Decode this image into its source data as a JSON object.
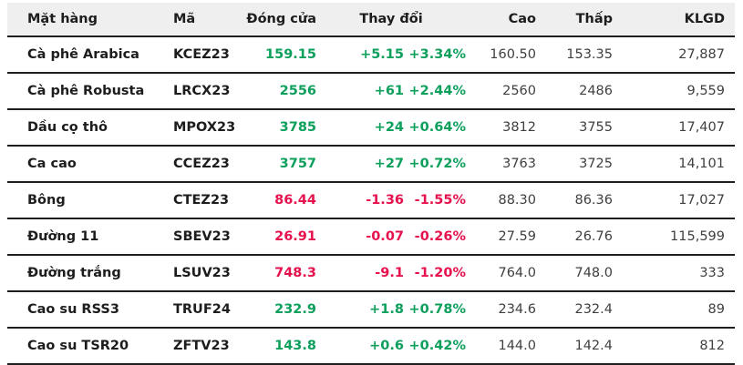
{
  "colors": {
    "up_green": "#0d9f5c",
    "down_red": "#e6124d",
    "header_bg": "#efefef",
    "divider": "#1f1f1f"
  },
  "table": {
    "headers": {
      "name": "Mặt hàng",
      "code": "Mã",
      "close": "Đóng cửa",
      "change": "Thay đổi",
      "high": "Cao",
      "low": "Thấp",
      "volume": "KLGD"
    },
    "rows": [
      {
        "name": "Cà phê Arabica",
        "code": "KCEZ23",
        "close": "159.15",
        "change": "+5.15",
        "change_pct": "+3.34%",
        "high": "160.50",
        "low": "153.35",
        "volume": "27,887",
        "direction": "up"
      },
      {
        "name": "Cà phê Robusta",
        "code": "LRCX23",
        "close": "2556",
        "change": "+61",
        "change_pct": "+2.44%",
        "high": "2560",
        "low": "2486",
        "volume": "9,559",
        "direction": "up"
      },
      {
        "name": "Dầu cọ thô",
        "code": "MPOX23",
        "close": "3785",
        "change": "+24",
        "change_pct": "+0.64%",
        "high": "3812",
        "low": "3755",
        "volume": "17,407",
        "direction": "up"
      },
      {
        "name": "Ca cao",
        "code": "CCEZ23",
        "close": "3757",
        "change": "+27",
        "change_pct": "+0.72%",
        "high": "3763",
        "low": "3725",
        "volume": "14,101",
        "direction": "up"
      },
      {
        "name": "Bông",
        "code": "CTEZ23",
        "close": "86.44",
        "change": "-1.36",
        "change_pct": "-1.55%",
        "high": "88.30",
        "low": "86.36",
        "volume": "17,027",
        "direction": "down"
      },
      {
        "name": "Đường 11",
        "code": "SBEV23",
        "close": "26.91",
        "change": "-0.07",
        "change_pct": "-0.26%",
        "high": "27.59",
        "low": "26.76",
        "volume": "115,599",
        "direction": "down"
      },
      {
        "name": "Đường trắng",
        "code": "LSUV23",
        "close": "748.3",
        "change": "-9.1",
        "change_pct": "-1.20%",
        "high": "764.0",
        "low": "748.0",
        "volume": "333",
        "direction": "down"
      },
      {
        "name": "Cao su RSS3",
        "code": "TRUF24",
        "close": "232.9",
        "change": "+1.8",
        "change_pct": "+0.78%",
        "high": "234.6",
        "low": "232.4",
        "volume": "89",
        "direction": "up"
      },
      {
        "name": "Cao su TSR20",
        "code": "ZFTV23",
        "close": "143.8",
        "change": "+0.6",
        "change_pct": "+0.42%",
        "high": "144.0",
        "low": "142.4",
        "volume": "812",
        "direction": "up"
      }
    ]
  },
  "chart_data": {
    "type": "table",
    "columns": [
      "Mặt hàng",
      "Mã",
      "Đóng cửa",
      "Thay đổi",
      "Thay đổi %",
      "Cao",
      "Thấp",
      "KLGD"
    ],
    "rows": [
      [
        "Cà phê Arabica",
        "KCEZ23",
        159.15,
        5.15,
        "3.34%",
        160.5,
        153.35,
        27887
      ],
      [
        "Cà phê Robusta",
        "LRCX23",
        2556,
        61,
        "2.44%",
        2560,
        2486,
        9559
      ],
      [
        "Dầu cọ thô",
        "MPOX23",
        3785,
        24,
        "0.64%",
        3812,
        3755,
        17407
      ],
      [
        "Ca cao",
        "CCEZ23",
        3757,
        27,
        "0.72%",
        3763,
        3725,
        14101
      ],
      [
        "Bông",
        "CTEZ23",
        86.44,
        -1.36,
        "-1.55%",
        88.3,
        86.36,
        17027
      ],
      [
        "Đường 11",
        "SBEV23",
        26.91,
        -0.07,
        "-0.26%",
        27.59,
        26.76,
        115599
      ],
      [
        "Đường trắng",
        "LSUV23",
        748.3,
        -9.1,
        "-1.20%",
        764.0,
        748.0,
        333
      ],
      [
        "Cao su RSS3",
        "TRUF24",
        232.9,
        1.8,
        "0.78%",
        234.6,
        232.4,
        89
      ],
      [
        "Cao su TSR20",
        "ZFTV23",
        143.8,
        0.6,
        "0.42%",
        144.0,
        142.4,
        812
      ]
    ]
  }
}
